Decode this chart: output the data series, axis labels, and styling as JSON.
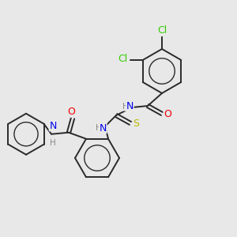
{
  "background_color": "#e8e8e8",
  "bond_color": "#2a2a2a",
  "atom_colors": {
    "N": "#0000ee",
    "O": "#ee0000",
    "S": "#bbbb00",
    "Cl": "#33cc00",
    "H": "#888888",
    "C": "#2a2a2a"
  },
  "figsize": [
    3.0,
    3.0
  ],
  "dpi": 100
}
